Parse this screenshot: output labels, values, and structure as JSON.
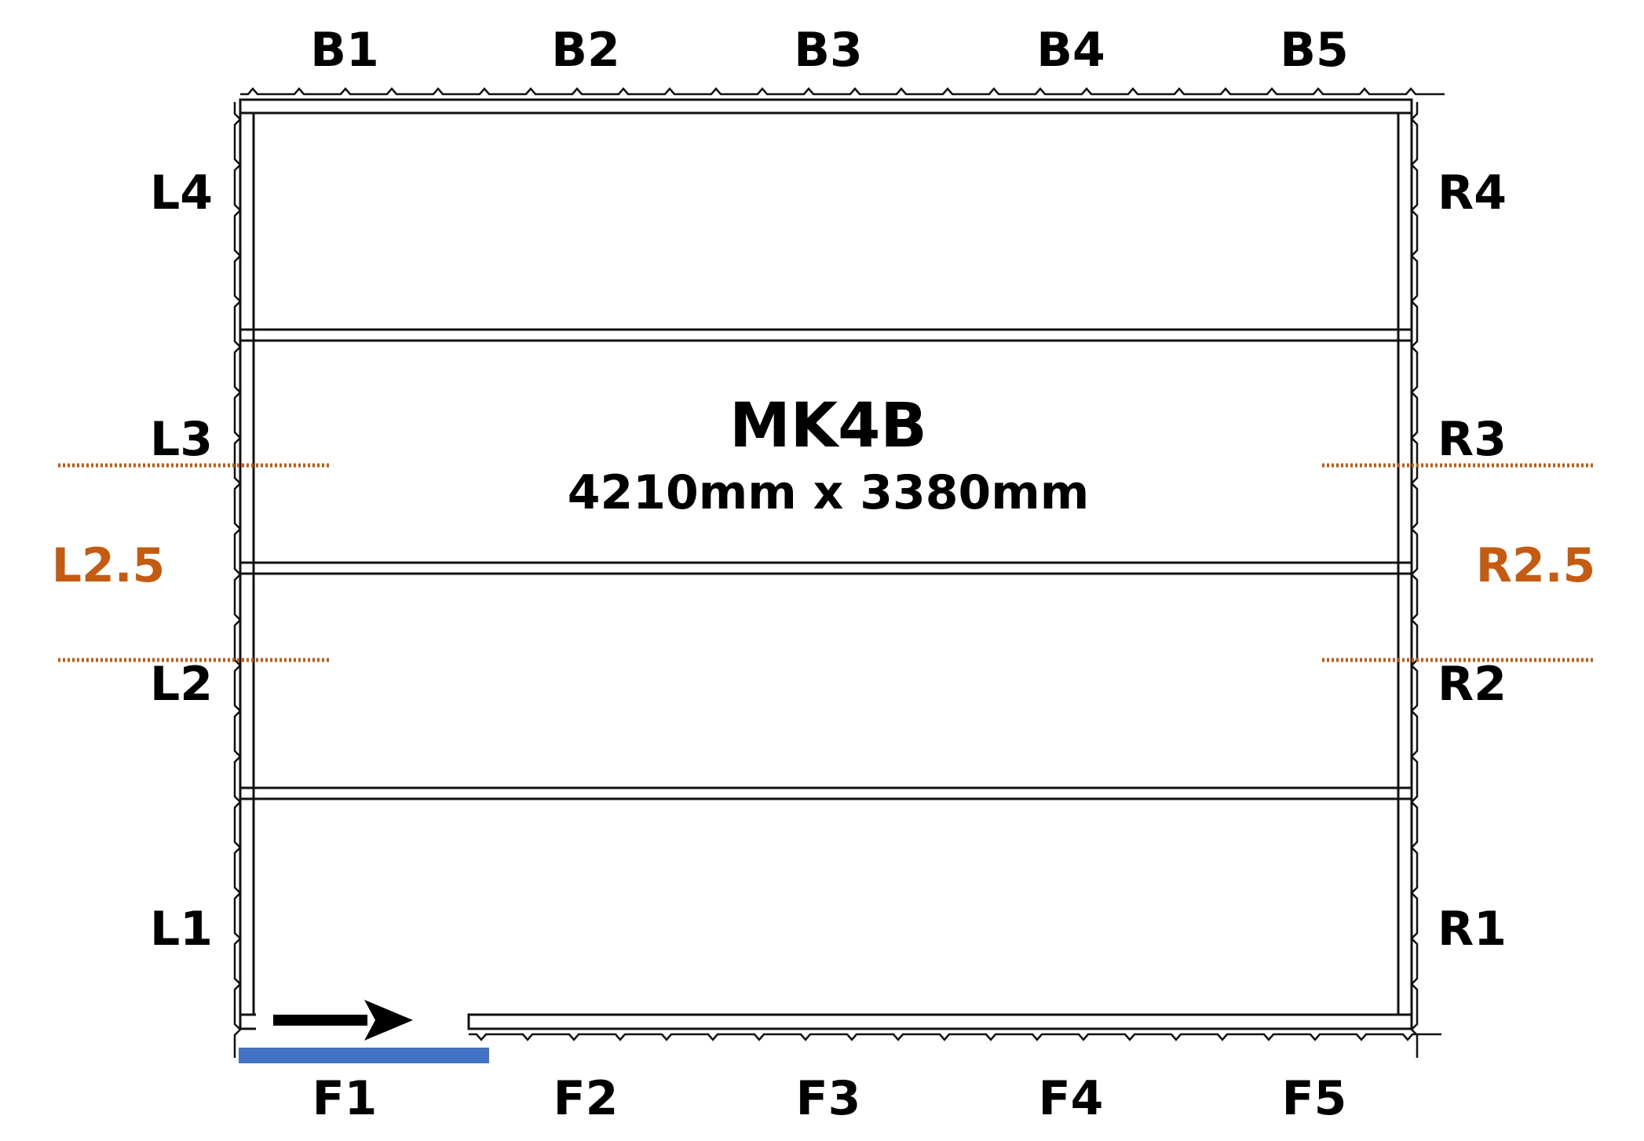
{
  "title": "MK4B",
  "dimensions": "4210mm x 3380mm",
  "back_labels": [
    "B1",
    "B2",
    "B3",
    "B4",
    "B5"
  ],
  "front_labels": [
    "F1",
    "F2",
    "F3",
    "F4",
    "F5"
  ],
  "left_labels": [
    "L4",
    "L3",
    "L2",
    "L1"
  ],
  "right_labels": [
    "R4",
    "R3",
    "R2",
    "R1"
  ],
  "marker_left": "L2.5",
  "marker_right": "R2.5",
  "colors": {
    "marker": "#C55A11",
    "entrance": "#4472C4",
    "line": "#111111"
  },
  "icons": {
    "direction": "arrow-right-icon"
  }
}
